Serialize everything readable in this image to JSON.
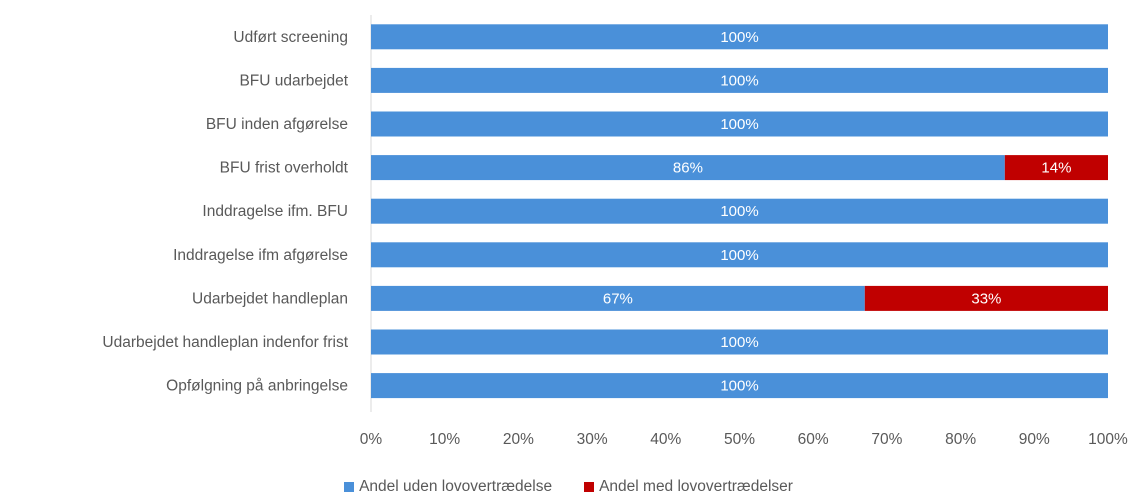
{
  "chart_data": {
    "type": "bar",
    "orientation": "horizontal",
    "stacked": true,
    "categories": [
      "Udført screening",
      "BFU udarbejdet",
      "BFU inden afgørelse",
      "BFU frist overholdt",
      "Inddragelse ifm. BFU",
      "Inddragelse ifm afgørelse",
      "Udarbejdet handleplan",
      "Udarbejdet handleplan indenfor frist",
      "Opfølgning på anbringelse"
    ],
    "series": [
      {
        "name": "Andel uden lovovertrædelse",
        "color": "#4a90d9",
        "values": [
          100,
          100,
          100,
          86,
          100,
          100,
          67,
          100,
          100
        ]
      },
      {
        "name": "Andel med lovovertrædelser",
        "color": "#c00000",
        "values": [
          0,
          0,
          0,
          14,
          0,
          0,
          33,
          0,
          0
        ]
      }
    ],
    "xlim": [
      0,
      100
    ],
    "xticks": [
      "0%",
      "10%",
      "20%",
      "30%",
      "40%",
      "50%",
      "60%",
      "70%",
      "80%",
      "90%",
      "100%"
    ],
    "grid": false,
    "legend_position": "bottom"
  }
}
